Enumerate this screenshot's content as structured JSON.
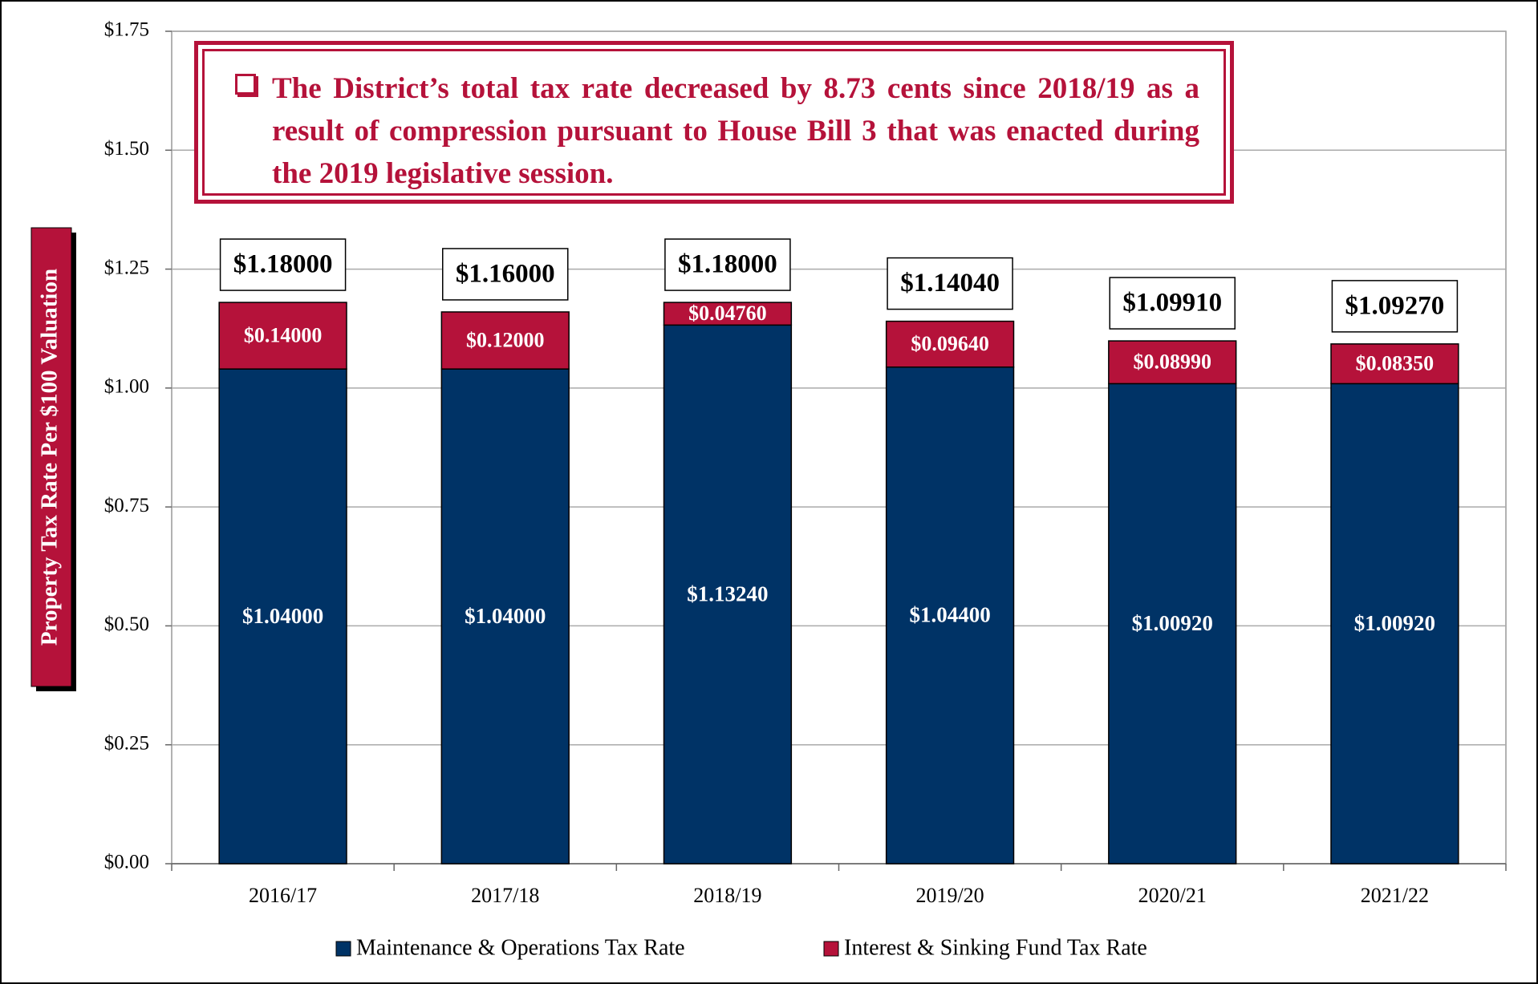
{
  "chart_data": {
    "type": "stacked_bar",
    "y_axis_label": "Property Tax Rate Per $100 Valuation",
    "annotation": "The District’s total tax rate decreased by 8.73 cents since 2018/19 as a result of compression pursuant to House Bill 3 that was enacted during the 2019 legislative session.",
    "categories": [
      "2016/17",
      "2017/18",
      "2018/19",
      "2019/20",
      "2020/21",
      "2021/22"
    ],
    "series": [
      {
        "name": "Maintenance & Operations Tax Rate",
        "color": "#003366",
        "values": [
          1.04,
          1.04,
          1.1324,
          1.044,
          1.0092,
          1.0092
        ],
        "value_labels": [
          "$1.04000",
          "$1.04000",
          "$1.13240",
          "$1.04400",
          "$1.00920",
          "$1.00920"
        ]
      },
      {
        "name": "Interest & Sinking Fund Tax Rate",
        "color": "#b5123a",
        "values": [
          0.14,
          0.12,
          0.0476,
          0.0964,
          0.0899,
          0.0835
        ],
        "value_labels": [
          "$0.14000",
          "$0.12000",
          "$0.04760",
          "$0.09640",
          "$0.08990",
          "$0.08350"
        ]
      }
    ],
    "total_labels": [
      "$1.18000",
      "$1.16000",
      "$1.18000",
      "$1.14040",
      "$1.09910",
      "$1.09270"
    ],
    "ylim": [
      0,
      1.75
    ],
    "yticks": [
      {
        "value": 0,
        "label": "$0.00"
      },
      {
        "value": 0.25,
        "label": "$0.25"
      },
      {
        "value": 0.5,
        "label": "$0.50"
      },
      {
        "value": 0.75,
        "label": "$0.75"
      },
      {
        "value": 1,
        "label": "$1.00"
      },
      {
        "value": 1.25,
        "label": "$1.25"
      },
      {
        "value": 1.5,
        "label": "$1.50"
      },
      {
        "value": 1.75,
        "label": "$1.75"
      }
    ],
    "grid": true,
    "legend": "bottom"
  }
}
